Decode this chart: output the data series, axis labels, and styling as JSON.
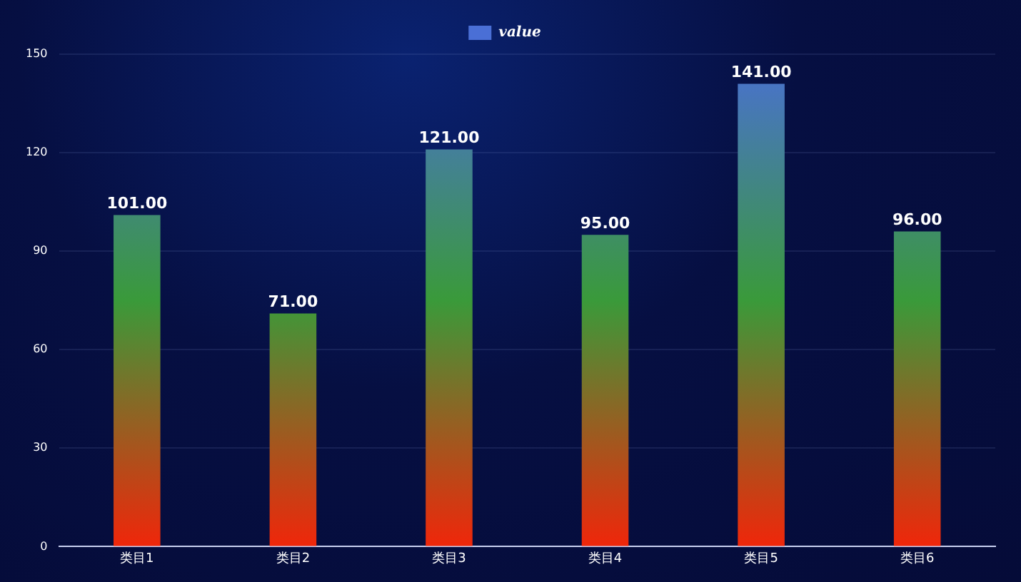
{
  "chart_data": {
    "type": "bar",
    "categories": [
      "类目1",
      "类目2",
      "类目3",
      "类目4",
      "类目5",
      "类目6"
    ],
    "series": [
      {
        "name": "value",
        "color": "#3a9a3a",
        "values": [
          101,
          71,
          121,
          95,
          141,
          96
        ],
        "value_labels": [
          "101.00",
          "71.00",
          "121.00",
          "95.00",
          "141.00",
          "96.00"
        ]
      }
    ],
    "ylim": [
      0,
      150
    ],
    "yticks": [
      0,
      30,
      60,
      90,
      120,
      150
    ],
    "grid": "y",
    "legend": "top"
  }
}
